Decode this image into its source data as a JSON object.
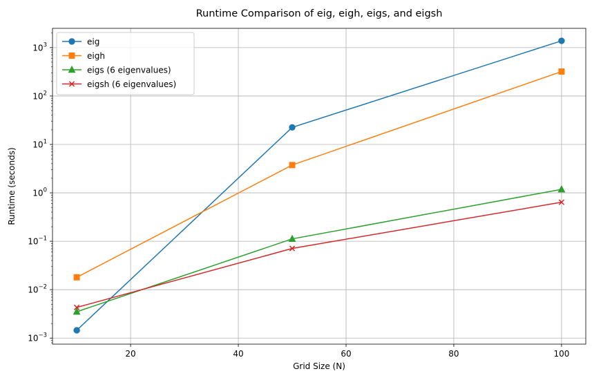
{
  "chart_data": {
    "type": "line",
    "title": "Runtime Comparison of eig, eigh, eigs, and eigsh",
    "xlabel": "Grid Size (N)",
    "ylabel": "Runtime (seconds)",
    "yscale": "log",
    "xlim": [
      5.5,
      104.5
    ],
    "ylim": [
      0.00075,
      2500
    ],
    "grid": true,
    "legend_position": "top-left",
    "x_ticks": [
      20,
      40,
      60,
      80,
      100
    ],
    "y_ticks": [
      {
        "value": 0.001,
        "base": "10",
        "exp": "−3"
      },
      {
        "value": 0.01,
        "base": "10",
        "exp": "−2"
      },
      {
        "value": 0.1,
        "base": "10",
        "exp": "−1"
      },
      {
        "value": 1,
        "base": "10",
        "exp": "0"
      },
      {
        "value": 10,
        "base": "10",
        "exp": "1"
      },
      {
        "value": 100,
        "base": "10",
        "exp": "2"
      },
      {
        "value": 1000,
        "base": "10",
        "exp": "3"
      }
    ],
    "x": [
      10,
      50,
      100
    ],
    "series": [
      {
        "name": "eig",
        "values": [
          0.00145,
          22.5,
          1380
        ],
        "color": "#1f77b4",
        "marker": "circle"
      },
      {
        "name": "eigh",
        "values": [
          0.018,
          3.75,
          320
        ],
        "color": "#ff7f0e",
        "marker": "square"
      },
      {
        "name": "eigs (6 eigenvalues)",
        "values": [
          0.0035,
          0.112,
          1.18
        ],
        "color": "#2ca02c",
        "marker": "triangle"
      },
      {
        "name": "eigsh (6 eigenvalues)",
        "values": [
          0.0043,
          0.071,
          0.64
        ],
        "color": "#d62728",
        "marker": "x"
      }
    ]
  }
}
